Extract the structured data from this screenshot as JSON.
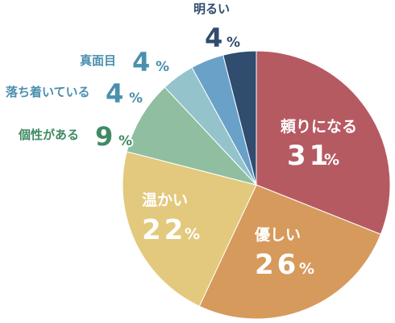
{
  "chart_data": {
    "type": "pie",
    "unit": "%",
    "start": "12 o'clock",
    "direction": "clockwise",
    "slices": [
      {
        "label": "頼りになる",
        "value": 31,
        "color": "#b65a62"
      },
      {
        "label": "優しい",
        "value": 26,
        "color": "#d69a5c"
      },
      {
        "label": "温かい",
        "value": 22,
        "color": "#e2c97d"
      },
      {
        "label": "個性がある",
        "value": 9,
        "color": "#8fbea0"
      },
      {
        "label": "落ち着いている",
        "value": 4,
        "color": "#94c3cc"
      },
      {
        "label": "真面目",
        "value": 4,
        "color": "#6aa1c9"
      },
      {
        "label": "明るい",
        "value": 4,
        "color": "#304c6f"
      }
    ]
  },
  "outside_label_colors": [
    "#3f8a63",
    "#4b8fae",
    "#4b8fae",
    "#304c6f"
  ]
}
